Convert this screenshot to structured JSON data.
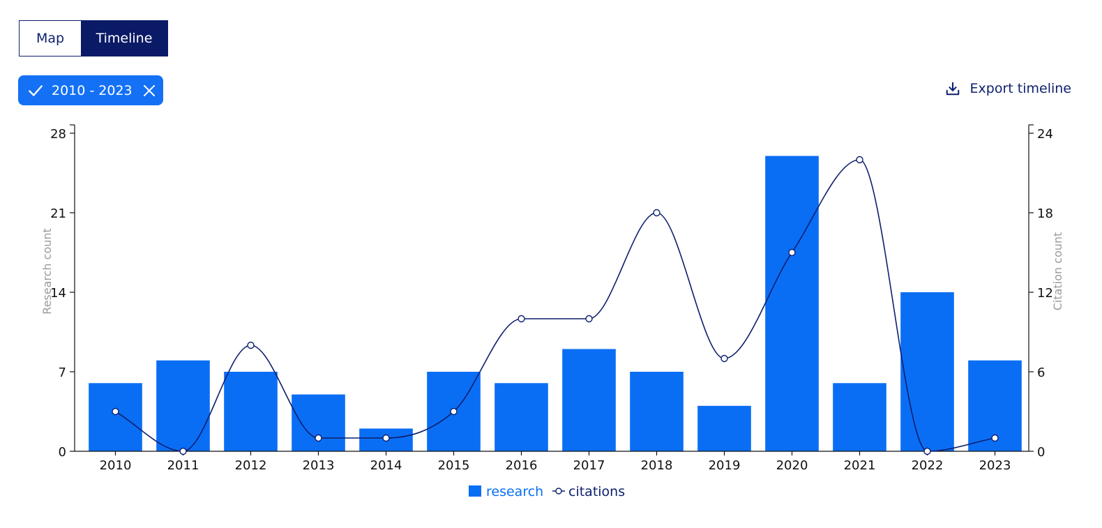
{
  "toggle": {
    "map_label": "Map",
    "timeline_label": "Timeline"
  },
  "filter": {
    "label": "2010 - 2023"
  },
  "export": {
    "label": "Export timeline"
  },
  "colors": {
    "bar": "#0a6ef5",
    "line": "#0c1f6e",
    "navy": "#0a1a66",
    "axis_title": "#999999"
  },
  "icons": {
    "check": "check-icon",
    "close": "close-icon",
    "export": "download-icon"
  },
  "chart_data": {
    "type": "bar",
    "categories": [
      "2010",
      "2011",
      "2012",
      "2013",
      "2014",
      "2015",
      "2016",
      "2017",
      "2018",
      "2019",
      "2020",
      "2021",
      "2022",
      "2023"
    ],
    "series": [
      {
        "name": "research",
        "axis": "left",
        "kind": "bar",
        "values": [
          6,
          8,
          7,
          5,
          2,
          7,
          6,
          9,
          7,
          4,
          26,
          6,
          14,
          8
        ]
      },
      {
        "name": "citations",
        "axis": "right",
        "kind": "line",
        "values": [
          3,
          0,
          8,
          1,
          1,
          3,
          10,
          10,
          18,
          7,
          15,
          22,
          0,
          1
        ]
      }
    ],
    "ylabel_left": "Research count",
    "ylabel_right": "Citation count",
    "ylim_left": [
      0,
      28
    ],
    "ylim_right": [
      0,
      24
    ],
    "yticks_left": [
      0,
      7,
      14,
      21,
      28
    ],
    "yticks_right": [
      0,
      6,
      12,
      18,
      24
    ],
    "legend_placement": "bottom-center",
    "grid": false
  }
}
